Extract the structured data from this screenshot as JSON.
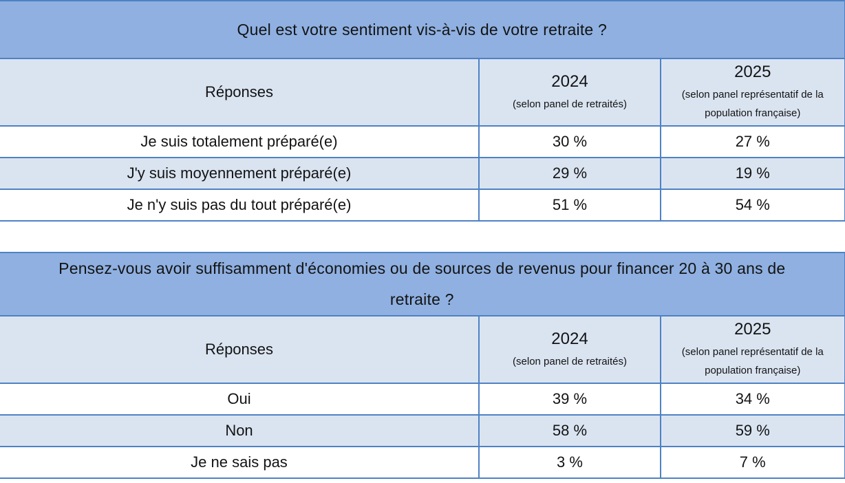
{
  "colors": {
    "title_bg": "#8FB0E1",
    "band_bg": "#DAE4F1",
    "border": "#4E81C4",
    "text": "#131313",
    "row_bg": "#FFFFFF"
  },
  "chart_data": [
    {
      "type": "table",
      "title": "Quel est votre sentiment vis-à-vis de votre retraite ?",
      "columns": [
        {
          "label": "Réponses",
          "note": ""
        },
        {
          "label": "2024",
          "note": "(selon panel de retraités)"
        },
        {
          "label": "2025",
          "note": "(selon panel représentatif de la population française)"
        }
      ],
      "rows": [
        {
          "label": "Je suis totalement préparé(e)",
          "pct_2024": "30 %",
          "pct_2025": "27 %"
        },
        {
          "label": "J'y suis moyennement préparé(e)",
          "pct_2024": "29 %",
          "pct_2025": "19 %"
        },
        {
          "label": "Je n'y suis pas du tout préparé(e)",
          "pct_2024": "51 %",
          "pct_2025": "54 %"
        }
      ],
      "layout": {
        "zebra_band_row_index": 1,
        "legend": "none",
        "grid": "full-borders"
      }
    },
    {
      "type": "table",
      "title": "Pensez-vous avoir suffisamment d'économies ou de sources de revenus pour financer 20 à 30 ans de retraite ?",
      "columns": [
        {
          "label": "Réponses",
          "note": ""
        },
        {
          "label": "2024",
          "note": "(selon panel de retraités)"
        },
        {
          "label": "2025",
          "note": "(selon panel représentatif de la population française)"
        }
      ],
      "rows": [
        {
          "label": "Oui",
          "pct_2024": "39 %",
          "pct_2025": "34 %"
        },
        {
          "label": "Non",
          "pct_2024": "58 %",
          "pct_2025": "59 %"
        },
        {
          "label": "Je ne sais pas",
          "pct_2024": "3 %",
          "pct_2025": "7 %"
        }
      ],
      "layout": {
        "zebra_band_row_index": 1,
        "legend": "none",
        "grid": "full-borders"
      }
    }
  ]
}
